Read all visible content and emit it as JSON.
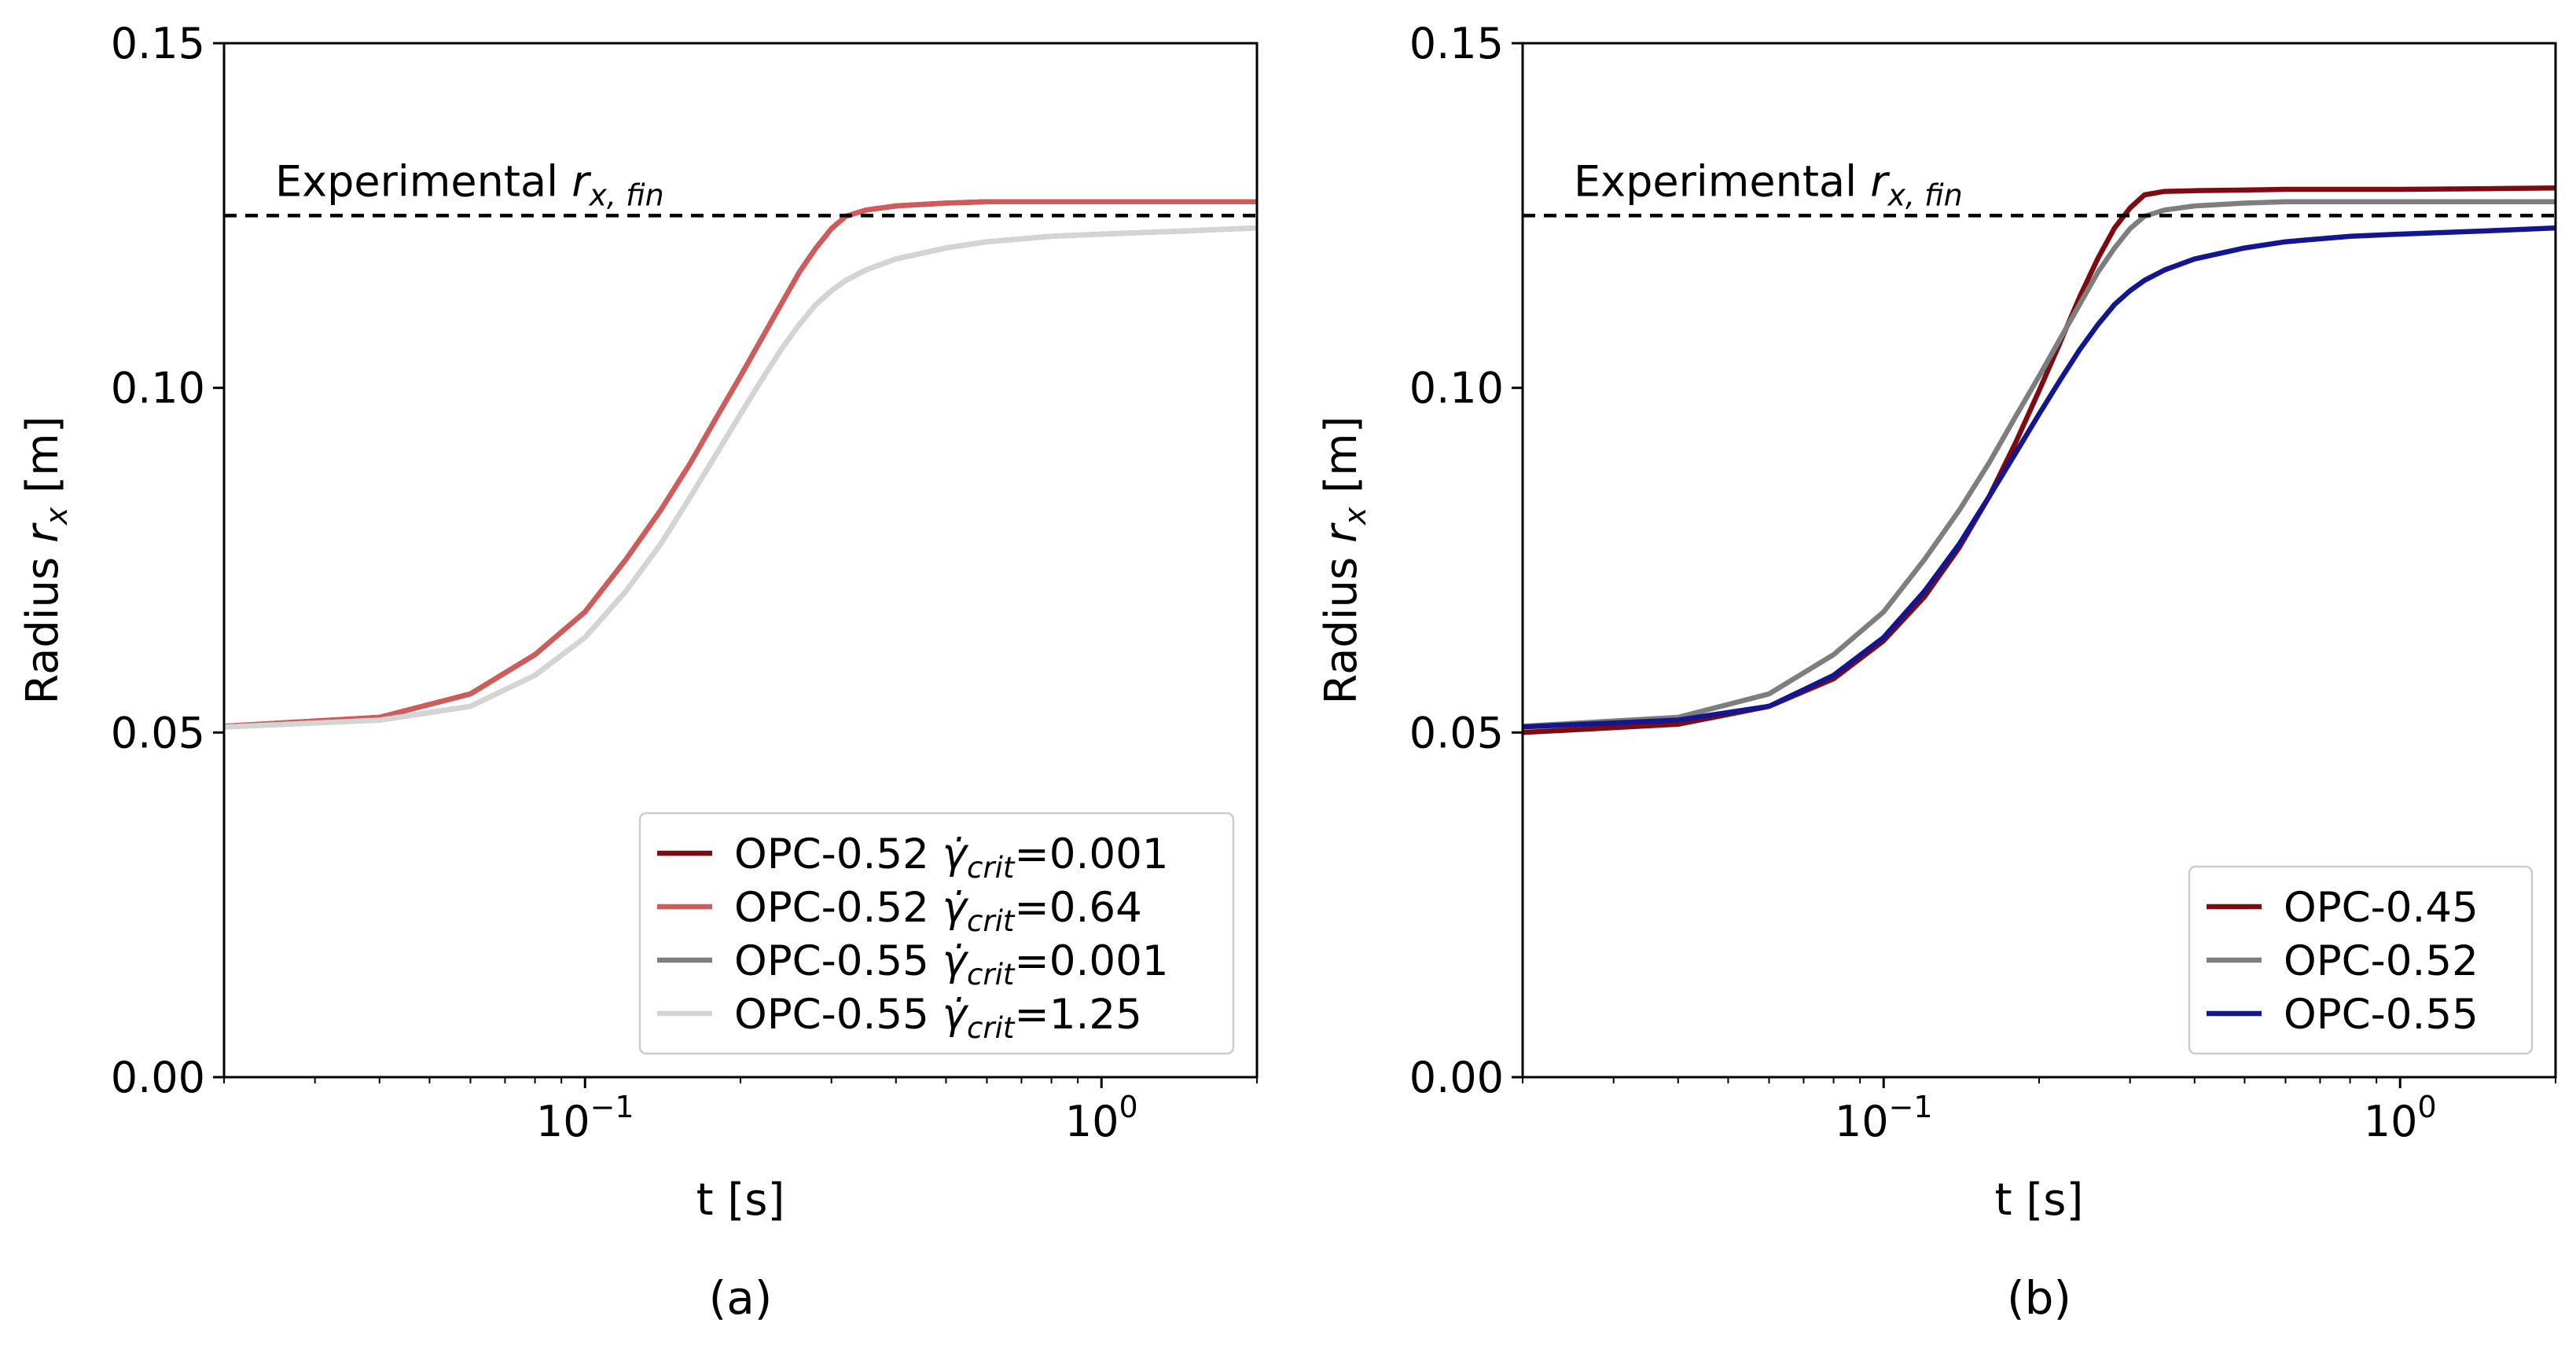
{
  "colors": {
    "dark_red": "#7f0b12",
    "salmon": "#cf5b5b",
    "gray": "#7e7e7e",
    "light_gray": "#d4d4d4",
    "blue": "#13168f",
    "reference": "#000000"
  },
  "chart_data": [
    {
      "type": "line",
      "panel_label": "(a)",
      "xlabel": "t [s]",
      "ylabel": "Radius r_x [m]",
      "ylabel_parts": {
        "main": "Radius ",
        "var": "r",
        "sub": "x",
        "unit": " [m]"
      },
      "xscale": "log",
      "xlim": [
        0.02,
        2.0
      ],
      "ylim": [
        0.0,
        0.15
      ],
      "yticks": [
        0.0,
        0.05,
        0.1,
        0.15
      ],
      "ytick_labels": [
        "0.00",
        "0.05",
        "0.10",
        "0.15"
      ],
      "xticks": [
        0.1,
        1.0
      ],
      "xtick_labels": [
        {
          "base": "10",
          "exp": "−1"
        },
        {
          "base": "10",
          "exp": "0"
        }
      ],
      "grid": false,
      "legend_position": "lower-right",
      "reference_line": {
        "y": 0.125,
        "style": "dashed",
        "label": "Experimental r_x,fin",
        "label_parts": {
          "main": "Experimental ",
          "var": "r",
          "sub": "x, fin"
        }
      },
      "series": [
        {
          "name": "OPC-0.52 γ̇_crit=0.001",
          "legend_parts": {
            "prefix": "OPC-0.52 ",
            "sym": "γ̇",
            "sub": "crit",
            "suffix": "=0.001"
          },
          "color": "#7f0b12",
          "x": [
            0.02,
            0.04,
            0.06,
            0.08,
            0.1,
            0.12,
            0.14,
            0.16,
            0.18,
            0.2,
            0.22,
            0.24,
            0.26,
            0.28,
            0.3,
            0.32,
            0.35,
            0.4,
            0.5,
            0.6,
            0.8,
            1.0,
            1.5,
            2.0
          ],
          "y": [
            0.0509,
            0.0522,
            0.0556,
            0.0613,
            0.0675,
            0.0751,
            0.0822,
            0.0891,
            0.0958,
            0.1017,
            0.1072,
            0.1122,
            0.1168,
            0.1203,
            0.1231,
            0.1249,
            0.1258,
            0.1264,
            0.1268,
            0.127,
            0.127,
            0.127,
            0.127,
            0.127
          ]
        },
        {
          "name": "OPC-0.52 γ̇_crit=0.64",
          "legend_parts": {
            "prefix": "OPC-0.52 ",
            "sym": "γ̇",
            "sub": "crit",
            "suffix": "=0.64"
          },
          "color": "#cf5b5b",
          "x": [
            0.02,
            0.04,
            0.06,
            0.08,
            0.1,
            0.12,
            0.14,
            0.16,
            0.18,
            0.2,
            0.22,
            0.24,
            0.26,
            0.28,
            0.3,
            0.32,
            0.35,
            0.4,
            0.5,
            0.6,
            0.8,
            1.0,
            1.5,
            2.0
          ],
          "y": [
            0.0509,
            0.0522,
            0.0556,
            0.0613,
            0.0675,
            0.0751,
            0.0822,
            0.0891,
            0.0958,
            0.1017,
            0.1072,
            0.1122,
            0.1168,
            0.1203,
            0.1231,
            0.1249,
            0.1258,
            0.1264,
            0.1268,
            0.127,
            0.127,
            0.127,
            0.127,
            0.127
          ]
        },
        {
          "name": "OPC-0.55 γ̇_crit=0.001",
          "legend_parts": {
            "prefix": "OPC-0.55 ",
            "sym": "γ̇",
            "sub": "crit",
            "suffix": "=0.001"
          },
          "color": "#7e7e7e",
          "x": [
            0.02,
            0.04,
            0.06,
            0.08,
            0.1,
            0.12,
            0.14,
            0.16,
            0.18,
            0.2,
            0.22,
            0.24,
            0.26,
            0.28,
            0.3,
            0.32,
            0.35,
            0.4,
            0.5,
            0.6,
            0.8,
            1.0,
            1.5,
            2.0
          ],
          "y": [
            0.0508,
            0.0518,
            0.0538,
            0.0583,
            0.0638,
            0.0705,
            0.0773,
            0.0842,
            0.0905,
            0.0962,
            0.1012,
            0.1056,
            0.1092,
            0.1121,
            0.1141,
            0.1156,
            0.1171,
            0.1187,
            0.1203,
            0.1212,
            0.122,
            0.1223,
            0.1228,
            0.1232
          ]
        },
        {
          "name": "OPC-0.55 γ̇_crit=1.25",
          "legend_parts": {
            "prefix": "OPC-0.55 ",
            "sym": "γ̇",
            "sub": "crit",
            "suffix": "=1.25"
          },
          "color": "#d4d4d4",
          "x": [
            0.02,
            0.04,
            0.06,
            0.08,
            0.1,
            0.12,
            0.14,
            0.16,
            0.18,
            0.2,
            0.22,
            0.24,
            0.26,
            0.28,
            0.3,
            0.32,
            0.35,
            0.4,
            0.5,
            0.6,
            0.8,
            1.0,
            1.5,
            2.0
          ],
          "y": [
            0.0508,
            0.0518,
            0.0538,
            0.0583,
            0.0638,
            0.0705,
            0.0773,
            0.0842,
            0.0905,
            0.0962,
            0.1012,
            0.1056,
            0.1092,
            0.1121,
            0.1141,
            0.1156,
            0.1171,
            0.1187,
            0.1203,
            0.1212,
            0.122,
            0.1223,
            0.1228,
            0.1232
          ]
        }
      ]
    },
    {
      "type": "line",
      "panel_label": "(b)",
      "xlabel": "t [s]",
      "ylabel": "Radius r_x [m]",
      "ylabel_parts": {
        "main": "Radius ",
        "var": "r",
        "sub": "x",
        "unit": " [m]"
      },
      "xscale": "log",
      "xlim": [
        0.02,
        2.0
      ],
      "ylim": [
        0.0,
        0.15
      ],
      "yticks": [
        0.0,
        0.05,
        0.1,
        0.15
      ],
      "ytick_labels": [
        "0.00",
        "0.05",
        "0.10",
        "0.15"
      ],
      "xticks": [
        0.1,
        1.0
      ],
      "xtick_labels": [
        {
          "base": "10",
          "exp": "−1"
        },
        {
          "base": "10",
          "exp": "0"
        }
      ],
      "grid": false,
      "legend_position": "lower-right",
      "reference_line": {
        "y": 0.125,
        "style": "dashed",
        "label": "Experimental r_x,fin",
        "label_parts": {
          "main": "Experimental ",
          "var": "r",
          "sub": "x, fin"
        }
      },
      "series": [
        {
          "name": "OPC-0.45",
          "legend_parts": {
            "prefix": "OPC-0.45",
            "sym": "",
            "sub": "",
            "suffix": ""
          },
          "color": "#7f0b12",
          "x": [
            0.02,
            0.04,
            0.06,
            0.08,
            0.1,
            0.12,
            0.14,
            0.16,
            0.18,
            0.2,
            0.22,
            0.24,
            0.26,
            0.28,
            0.3,
            0.32,
            0.35,
            0.4,
            0.5,
            0.6,
            0.8,
            1.0,
            1.5,
            2.0
          ],
          "y": [
            0.05,
            0.0512,
            0.0538,
            0.0578,
            0.0633,
            0.0697,
            0.0768,
            0.0842,
            0.092,
            0.0996,
            0.1067,
            0.1133,
            0.1188,
            0.1232,
            0.1261,
            0.128,
            0.1285,
            0.1286,
            0.1287,
            0.1288,
            0.1288,
            0.1288,
            0.1289,
            0.129
          ]
        },
        {
          "name": "OPC-0.52",
          "legend_parts": {
            "prefix": "OPC-0.52",
            "sym": "",
            "sub": "",
            "suffix": ""
          },
          "color": "#7e7e7e",
          "x": [
            0.02,
            0.04,
            0.06,
            0.08,
            0.1,
            0.12,
            0.14,
            0.16,
            0.18,
            0.2,
            0.22,
            0.24,
            0.26,
            0.28,
            0.3,
            0.32,
            0.35,
            0.4,
            0.5,
            0.6,
            0.8,
            1.0,
            1.5,
            2.0
          ],
          "y": [
            0.0509,
            0.0522,
            0.0556,
            0.0613,
            0.0675,
            0.0751,
            0.0822,
            0.0891,
            0.0958,
            0.1017,
            0.1072,
            0.1122,
            0.1168,
            0.1203,
            0.1231,
            0.1249,
            0.1258,
            0.1264,
            0.1268,
            0.127,
            0.127,
            0.127,
            0.127,
            0.127
          ]
        },
        {
          "name": "OPC-0.55",
          "legend_parts": {
            "prefix": "OPC-0.55",
            "sym": "",
            "sub": "",
            "suffix": ""
          },
          "color": "#13168f",
          "x": [
            0.02,
            0.04,
            0.06,
            0.08,
            0.1,
            0.12,
            0.14,
            0.16,
            0.18,
            0.2,
            0.22,
            0.24,
            0.26,
            0.28,
            0.3,
            0.32,
            0.35,
            0.4,
            0.5,
            0.6,
            0.8,
            1.0,
            1.5,
            2.0
          ],
          "y": [
            0.0508,
            0.0518,
            0.0538,
            0.0583,
            0.0638,
            0.0705,
            0.0773,
            0.0842,
            0.0905,
            0.0962,
            0.1012,
            0.1056,
            0.1092,
            0.1121,
            0.1141,
            0.1156,
            0.1171,
            0.1187,
            0.1203,
            0.1212,
            0.122,
            0.1223,
            0.1228,
            0.1232
          ]
        }
      ]
    }
  ]
}
